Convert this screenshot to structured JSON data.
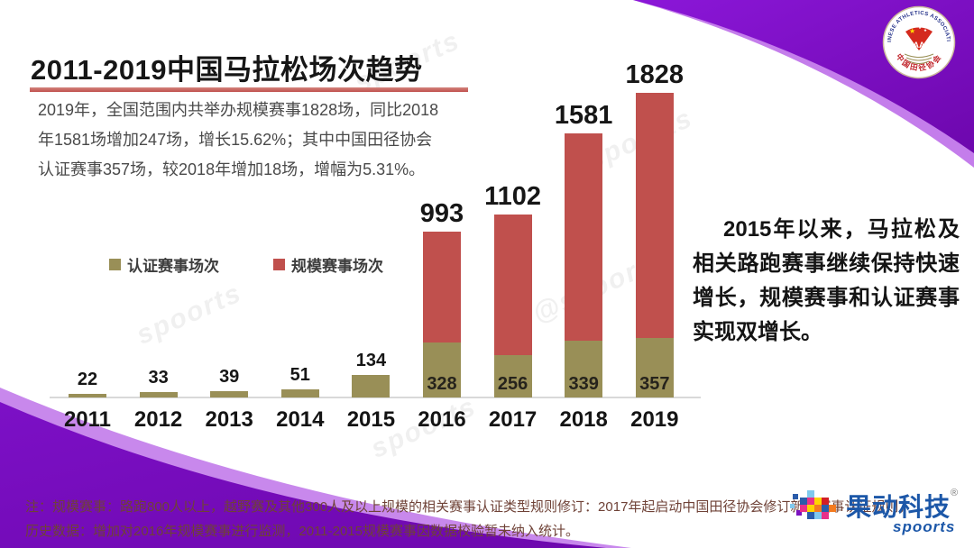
{
  "slide": {
    "title": "2011-2019中国马拉松场次趋势",
    "intro_lines": [
      "2019年，全国范围内共举办规模赛事1828场，同比2018",
      "年1581场增加247场，增长15.62%；其中中国田径协会",
      "认证赛事357场，较2018年增加18场，增幅为5.31%。"
    ],
    "highlight": "2015年以来，马拉松及相关路跑赛事继续保持快速增长，规模赛事和认证赛事实现双增长。",
    "notes": [
      "注：规模赛事：路跑800人以上，越野赛及其他300人及以上规模的相关赛事认证类型规则修订：2017年起启动中国田径协会修订新的赛事认证规则，",
      "历史数据：增加对2016年规模赛事进行监测，2011-2015规模赛事因数据校验暂未纳入统计。"
    ]
  },
  "watermark": {
    "text": "spoorts",
    "handle": "@spoorts"
  },
  "colors": {
    "accent_red": "#c0504d",
    "olive": "#998f57",
    "purple_dark": "#6d07ad",
    "purple_main": "#8b17d8",
    "purple_light": "#a438e0",
    "axis_gray": "#d9d9d9",
    "logo_blue": "#1c57a8"
  },
  "logos": {
    "caa": {
      "arc_top": "CHINESE ATHLETICS ASSOCIATION",
      "arc_bottom": "中国田径协会",
      "monogram": "AA"
    },
    "spoorts": {
      "name": "果动科技",
      "registered": "®",
      "wordmark": "spoorts",
      "mosaic": [
        [
          0,
          16,
          5,
          "#7fc9ee"
        ],
        [
          3,
          5,
          6,
          "#2a5caa"
        ],
        [
          7,
          23,
          6,
          "#7c12c0"
        ],
        [
          11,
          9,
          8,
          "#2a5caa"
        ],
        [
          11,
          17,
          8,
          "#e8308a"
        ],
        [
          19,
          1,
          8,
          "#7fc9ee"
        ],
        [
          19,
          9,
          8,
          "#e8308a"
        ],
        [
          19,
          17,
          8,
          "#ffd400"
        ],
        [
          19,
          25,
          8,
          "#2a5caa"
        ],
        [
          27,
          9,
          8,
          "#ffd400"
        ],
        [
          27,
          17,
          8,
          "#f47b20"
        ],
        [
          27,
          25,
          8,
          "#7fc9ee"
        ],
        [
          35,
          9,
          8,
          "#d21f26"
        ],
        [
          35,
          17,
          8,
          "#2a5caa"
        ],
        [
          35,
          25,
          8,
          "#e8308a"
        ],
        [
          43,
          17,
          8,
          "#f47b20"
        ]
      ]
    }
  },
  "chart_data": {
    "type": "bar",
    "stacked": true,
    "title": "2011-2019中国马拉松场次趋势",
    "xlabel": "",
    "ylabel": "",
    "ylim": [
      0,
      1828
    ],
    "grid": false,
    "legend_position": "middle-left",
    "categories": [
      "2011",
      "2012",
      "2013",
      "2014",
      "2015",
      "2016",
      "2017",
      "2018",
      "2019"
    ],
    "series": [
      {
        "name": "认证赛事场次",
        "color": "#998f57",
        "values": [
          22,
          33,
          39,
          51,
          134,
          328,
          256,
          339,
          357
        ]
      },
      {
        "name": "规模赛事场次",
        "color": "#c0504d",
        "values": [
          null,
          null,
          null,
          null,
          null,
          993,
          1102,
          1581,
          1828
        ]
      }
    ],
    "top_labels": [
      "22",
      "33",
      "39",
      "51",
      "134",
      "993",
      "1102",
      "1581",
      "1828"
    ],
    "inner_labels": [
      null,
      null,
      null,
      null,
      null,
      "328",
      "256",
      "339",
      "357"
    ]
  }
}
